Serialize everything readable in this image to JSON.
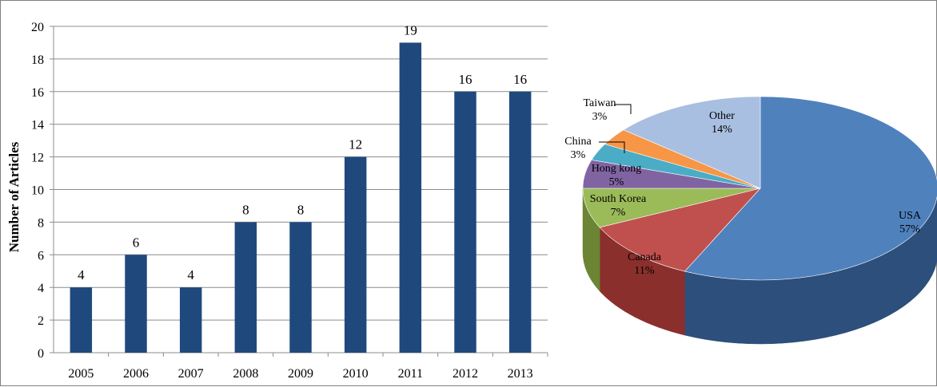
{
  "chart_data": [
    {
      "type": "bar",
      "ylabel": "Number of Articles",
      "xlabel": "",
      "categories": [
        "2005",
        "2006",
        "2007",
        "2008",
        "2009",
        "2010",
        "2011",
        "2012",
        "2013"
      ],
      "values": [
        4,
        6,
        4,
        8,
        8,
        12,
        19,
        16,
        16
      ],
      "data_labels": [
        "4",
        "6",
        "4",
        "8",
        "8",
        "12",
        "19",
        "16",
        "16"
      ],
      "ylim": [
        0,
        20
      ],
      "yticks": [
        0,
        2,
        4,
        6,
        8,
        10,
        12,
        14,
        16,
        18,
        20
      ],
      "ytick_labels": [
        "0",
        "2",
        "4",
        "6",
        "8",
        "10",
        "12",
        "14",
        "16",
        "18",
        "20"
      ],
      "grid": true,
      "colors": {
        "bar": "#1f497d",
        "grid": "#8c8c8c",
        "axis": "#8c8c8c",
        "text": "#000000"
      }
    },
    {
      "type": "pie",
      "style": "3d-exploded-none",
      "slices": [
        {
          "label": "USA",
          "pct_label": "57%",
          "value": 57,
          "color": "#4f81bd",
          "side": "#2c4f7c"
        },
        {
          "label": "Canada",
          "pct_label": "11%",
          "value": 11,
          "color": "#c0504d",
          "side": "#8a2f2c"
        },
        {
          "label": "South Korea",
          "pct_label": "7%",
          "value": 7,
          "color": "#9bbb59",
          "side": "#6b8535"
        },
        {
          "label": "Hong kong",
          "pct_label": "5%",
          "value": 5,
          "color": "#8064a2",
          "side": "#574170"
        },
        {
          "label": "China",
          "pct_label": "3%",
          "value": 3,
          "color": "#4bacc6",
          "side": "#2a7386"
        },
        {
          "label": "Taiwan",
          "pct_label": "3%",
          "value": 3,
          "color": "#f79646",
          "side": "#b5652a"
        },
        {
          "label": "Other",
          "pct_label": "14%",
          "value": 14,
          "color": "#a9bfe1",
          "side": "#7a8fb0"
        }
      ]
    }
  ]
}
